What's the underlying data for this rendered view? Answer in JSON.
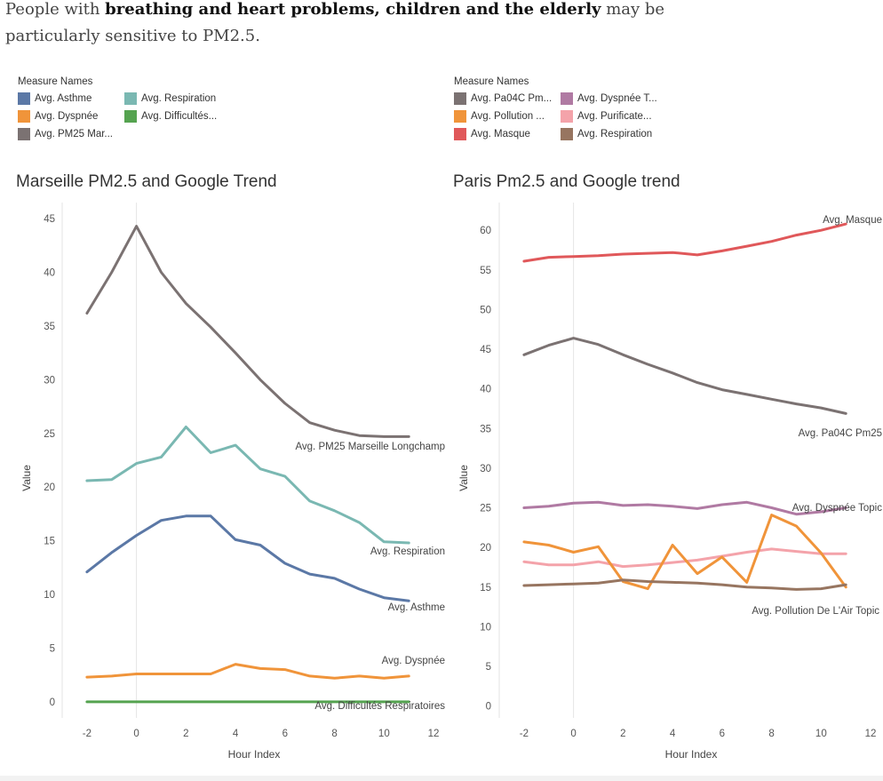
{
  "intro": {
    "part1": "People with ",
    "bold": "breathing and heart problems, children and the elderly",
    "part2": " may be particularly sensitive to PM2.5."
  },
  "legends": [
    {
      "title": "Measure Names",
      "items": [
        {
          "label": "Avg. Asthme",
          "color": "#5b78a6"
        },
        {
          "label": "Avg. Respiration",
          "color": "#7ab8b2"
        },
        {
          "label": "Avg. Dyspnée",
          "color": "#f0943a"
        },
        {
          "label": "Avg. Difficultés...",
          "color": "#55a350"
        },
        {
          "label": "Avg. PM25 Mar...",
          "color": "#7b7272"
        }
      ]
    },
    {
      "title": "Measure Names",
      "items": [
        {
          "label": "Avg. Pa04C Pm...",
          "color": "#7b7272"
        },
        {
          "label": "Avg. Dyspnée T...",
          "color": "#b07aa3"
        },
        {
          "label": "Avg. Pollution ...",
          "color": "#f0943a"
        },
        {
          "label": "Avg. Purificate...",
          "color": "#f4a3aa"
        },
        {
          "label": "Avg. Masque",
          "color": "#e0585a"
        },
        {
          "label": "Avg. Respiration",
          "color": "#977560"
        }
      ]
    }
  ],
  "chart_data": [
    {
      "type": "line",
      "title": "Marseille PM2.5 and Google Trend",
      "xlabel": "Hour Index",
      "ylabel": "Value",
      "xlim": [
        -3,
        12.5
      ],
      "ylim": [
        -1.5,
        46.5
      ],
      "xticks": [
        -2,
        0,
        2,
        4,
        6,
        8,
        10,
        12
      ],
      "yticks": [
        0,
        5,
        10,
        15,
        20,
        25,
        30,
        35,
        40,
        45
      ],
      "x": [
        -2,
        -1,
        0,
        1,
        2,
        3,
        4,
        5,
        6,
        7,
        8,
        9,
        10,
        11
      ],
      "grid": "vertical",
      "series": [
        {
          "name": "Avg. PM25 Marseille Longchamp",
          "color": "#7b7272",
          "values": [
            36.2,
            40,
            44.3,
            40,
            37.1,
            34.9,
            32.5,
            30,
            27.8,
            26,
            25.3,
            24.8,
            24.7,
            24.7
          ]
        },
        {
          "name": "Avg. Respiration",
          "color": "#7ab8b2",
          "values": [
            20.6,
            20.7,
            22.2,
            22.8,
            25.6,
            23.2,
            23.9,
            21.7,
            21,
            18.7,
            17.8,
            16.7,
            14.9,
            14.8
          ]
        },
        {
          "name": "Avg. Asthme",
          "color": "#5b78a6",
          "values": [
            12.1,
            13.9,
            15.5,
            16.9,
            17.3,
            17.3,
            15.1,
            14.6,
            12.9,
            11.9,
            11.5,
            10.5,
            9.7,
            9.4
          ]
        },
        {
          "name": "Avg. Dyspnée",
          "color": "#f0943a",
          "values": [
            2.3,
            2.4,
            2.6,
            2.6,
            2.6,
            2.6,
            3.5,
            3.1,
            3,
            2.4,
            2.2,
            2.4,
            2.2,
            2.4
          ]
        },
        {
          "name": "Avg. Difficultés Respiratoires",
          "color": "#55a350",
          "values": [
            0,
            0,
            0,
            0,
            0,
            0,
            0,
            0,
            0,
            0,
            0,
            0,
            0,
            0
          ]
        }
      ]
    },
    {
      "type": "line",
      "title": "Paris Pm2.5 and Google trend",
      "xlabel": "Hour Index",
      "ylabel": "Value",
      "xlim": [
        -3,
        12.5
      ],
      "ylim": [
        -1.5,
        63.5
      ],
      "xticks": [
        -2,
        0,
        2,
        4,
        6,
        8,
        10,
        12
      ],
      "yticks": [
        0,
        5,
        10,
        15,
        20,
        25,
        30,
        35,
        40,
        45,
        50,
        55,
        60
      ],
      "x": [
        -2,
        -1,
        0,
        1,
        2,
        3,
        4,
        5,
        6,
        7,
        8,
        9,
        10,
        11
      ],
      "grid": "vertical",
      "series": [
        {
          "name": "Avg. Masque",
          "color": "#e0585a",
          "values": [
            56.1,
            56.6,
            56.7,
            56.8,
            57,
            57.1,
            57.2,
            56.9,
            57.4,
            58,
            58.6,
            59.4,
            60,
            60.8
          ]
        },
        {
          "name": "Avg. Pa04C Pm25",
          "color": "#7b7272",
          "values": [
            44.3,
            45.5,
            46.4,
            45.6,
            44.3,
            43.1,
            42,
            40.8,
            39.9,
            39.3,
            38.7,
            38.1,
            37.6,
            36.9
          ]
        },
        {
          "name": "Avg. Dyspnée Topic",
          "color": "#b07aa3",
          "values": [
            25,
            25.2,
            25.6,
            25.7,
            25.3,
            25.4,
            25.2,
            24.9,
            25.4,
            25.7,
            25,
            24.2,
            24.5,
            25
          ]
        },
        {
          "name": "Avg. Purificateur",
          "color": "#f4a3aa",
          "values": [
            18.2,
            17.8,
            17.8,
            18.2,
            17.6,
            17.8,
            18.1,
            18.4,
            18.9,
            19.4,
            19.8,
            19.5,
            19.2,
            19.2
          ]
        },
        {
          "name": "Avg. Pollution De L'Air Topic",
          "color": "#f0943a",
          "values": [
            20.7,
            20.3,
            19.4,
            20.1,
            15.7,
            14.8,
            20.3,
            16.7,
            18.8,
            15.6,
            24.1,
            22.7,
            19.3,
            15
          ]
        },
        {
          "name": "Avg. Respiration",
          "color": "#977560",
          "values": [
            15.2,
            15.3,
            15.4,
            15.5,
            15.9,
            15.7,
            15.6,
            15.5,
            15.3,
            15,
            14.9,
            14.7,
            14.8,
            15.3
          ]
        }
      ]
    }
  ]
}
